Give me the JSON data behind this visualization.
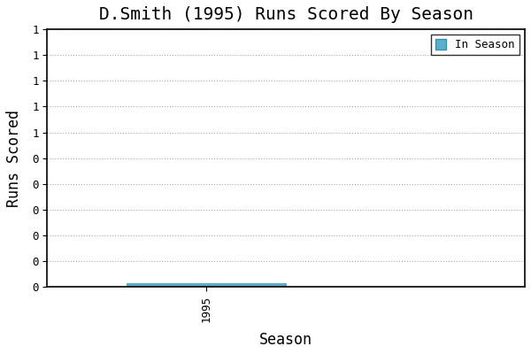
{
  "title": "D.Smith (1995) Runs Scored By Season",
  "xlabel": "Season",
  "ylabel": "Runs Scored",
  "x_data": [
    1995
  ],
  "y_data": [
    0.02
  ],
  "bar_color": "#5aafca",
  "bar_edgecolor": "#3a8faa",
  "background_color": "#ffffff",
  "grid_color": "#aaaaaa",
  "legend_label": "In Season",
  "ylim_max": 1.4,
  "xlim": [
    1993.0,
    1999.0
  ],
  "title_fontsize": 14,
  "axis_label_fontsize": 12,
  "tick_fontsize": 9,
  "bar_width": 2.0,
  "font_family": "monospace"
}
